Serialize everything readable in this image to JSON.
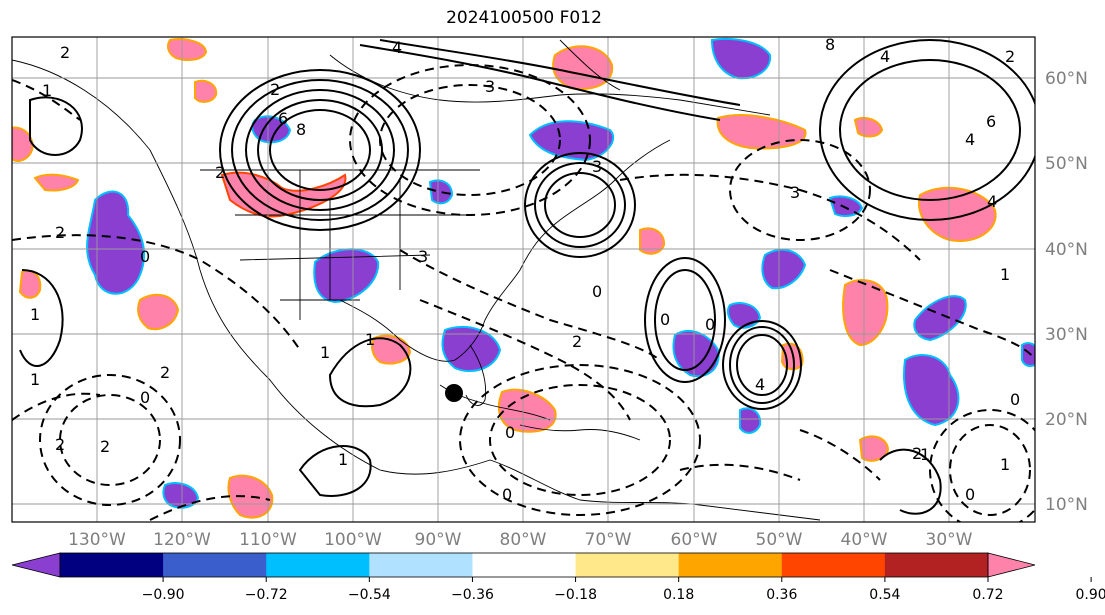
{
  "title": "2024100500 F012",
  "latitudes": [
    "60°N",
    "50°N",
    "40°N",
    "30°N",
    "20°N",
    "10°N"
  ],
  "longitudes": [
    "130°W",
    "120°W",
    "110°W",
    "100°W",
    "90°W",
    "80°W",
    "70°W",
    "60°W",
    "50°W",
    "40°W",
    "30°W"
  ],
  "colorbar": {
    "ticks": [
      "−0.90",
      "−0.72",
      "−0.54",
      "−0.36",
      "−0.18",
      "0.18",
      "0.36",
      "0.54",
      "0.72",
      "0.90"
    ],
    "colors": [
      "#8a3fd1",
      "#000080",
      "#3a5fcd",
      "#00bfff",
      "#b0e2ff",
      "#ffffff",
      "#ffe88a",
      "#ffa500",
      "#ff4500",
      "#b22222",
      "#ff82ab"
    ]
  },
  "contour_labels": [
    "2",
    "1",
    "4",
    "3",
    "2",
    "6",
    "8",
    "8",
    "4",
    "2",
    "0",
    "3",
    "3",
    "6",
    "4",
    "2",
    "0",
    "2",
    "1",
    "2",
    "0",
    "1",
    "0",
    "4",
    "1",
    "2",
    "0",
    "2",
    "1",
    "3",
    "0",
    "1",
    "2",
    "0",
    "1",
    "1",
    "2",
    "0",
    "4",
    "1",
    "0"
  ]
}
